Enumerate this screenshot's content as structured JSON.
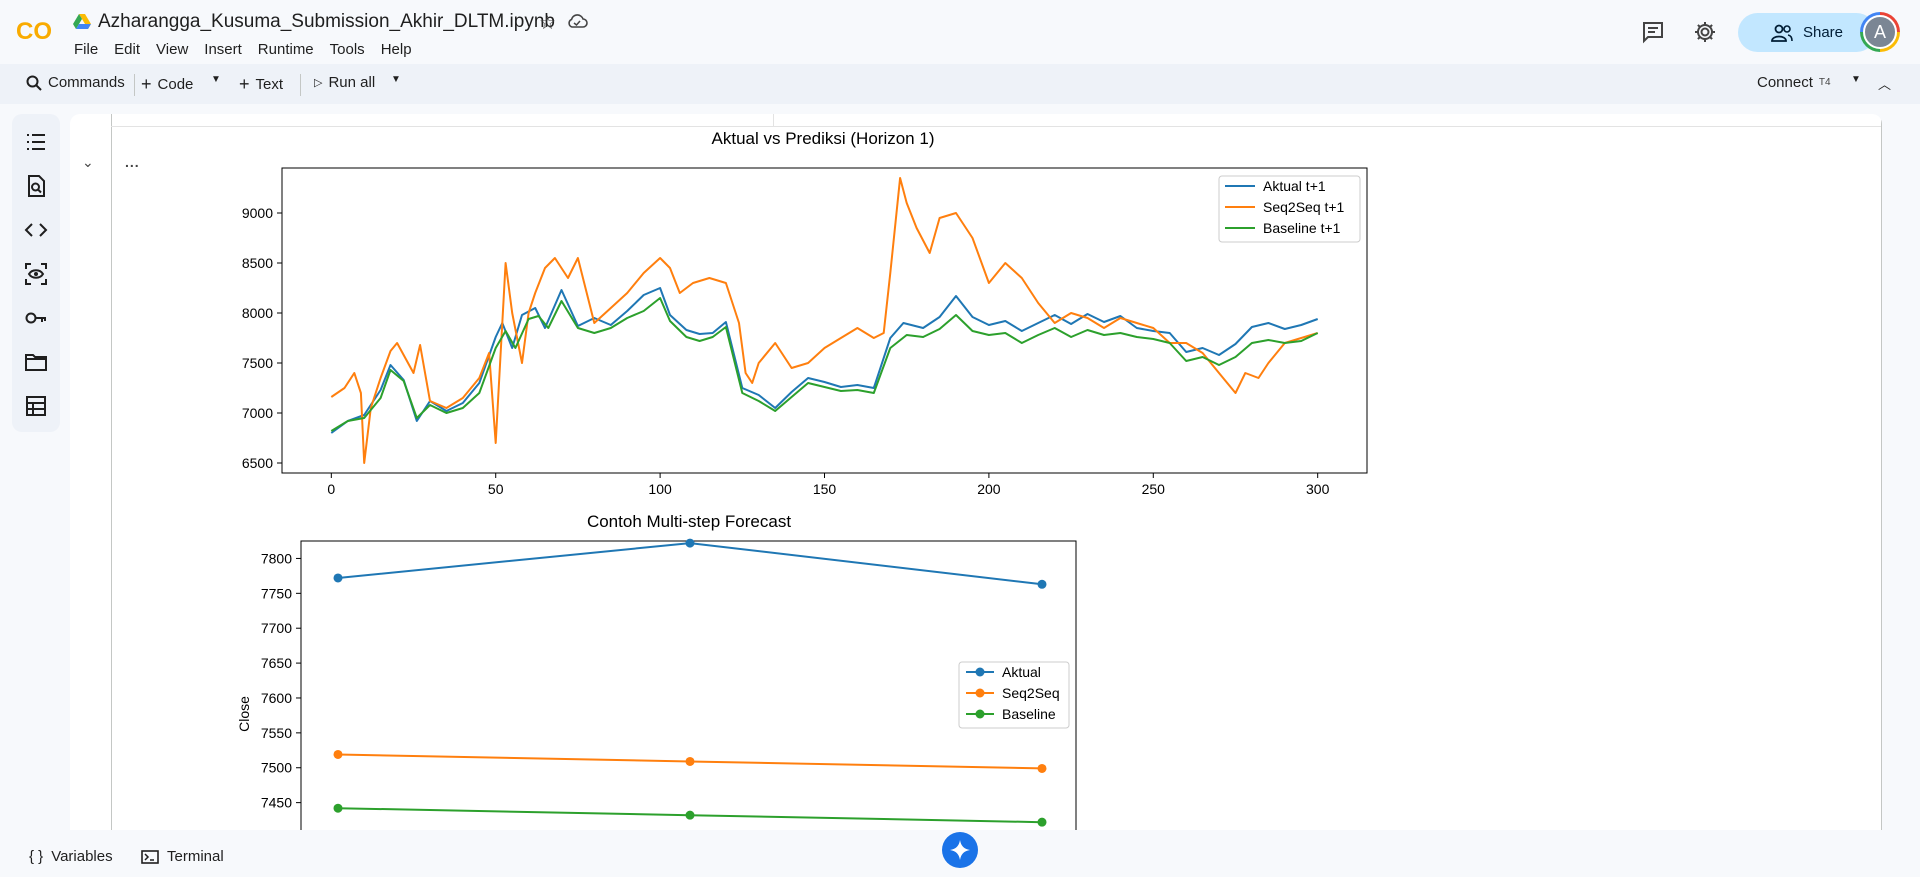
{
  "app": {
    "logo_text": "CO",
    "title": "Azharangga_Kusuma_Submission_Akhir_DLTM.ipynb"
  },
  "menu": [
    "File",
    "Edit",
    "View",
    "Insert",
    "Runtime",
    "Tools",
    "Help"
  ],
  "header": {
    "share_label": "Share",
    "avatar_letter": "A"
  },
  "toolbar": {
    "commands_label": "Commands",
    "code_label": "Code",
    "text_label": "Text",
    "run_all_label": "Run all",
    "connect_label": "Connect",
    "runtime_badge": "T4"
  },
  "output": {
    "menu_label": "...",
    "chevron": "⌄"
  },
  "bottom": {
    "variables_label": "Variables",
    "terminal_label": "Terminal"
  },
  "colors": {
    "blue": "#1f77b4",
    "orange": "#ff7f0e",
    "green": "#2ca02c",
    "share_bg": "#c2e7ff",
    "gemini": "#1a73e8"
  },
  "chart_data": [
    {
      "type": "line",
      "title": "Aktual vs Prediksi (Horizon 1)",
      "xlabel": "",
      "ylabel": "",
      "xlim": [
        -15,
        315
      ],
      "ylim": [
        6400,
        9450
      ],
      "xticks": [
        0,
        50,
        100,
        150,
        200,
        250,
        300
      ],
      "yticks": [
        6500,
        7000,
        7500,
        8000,
        8500,
        9000
      ],
      "legend": "top-right",
      "series": [
        {
          "name": "Aktual t+1",
          "color": "#1f77b4",
          "x": [
            0,
            5,
            10,
            15,
            18,
            22,
            26,
            30,
            35,
            40,
            45,
            50,
            52,
            55,
            58,
            62,
            65,
            70,
            75,
            80,
            85,
            90,
            95,
            100,
            103,
            108,
            112,
            116,
            120,
            125,
            130,
            135,
            140,
            145,
            150,
            155,
            160,
            165,
            170,
            174,
            180,
            185,
            190,
            195,
            200,
            205,
            210,
            215,
            220,
            225,
            230,
            235,
            240,
            245,
            250,
            255,
            260,
            265,
            270,
            275,
            280,
            285,
            290,
            295,
            300
          ],
          "values": [
            6800,
            6920,
            6980,
            7230,
            7480,
            7330,
            6920,
            7120,
            7020,
            7100,
            7300,
            7760,
            7900,
            7650,
            7980,
            8050,
            7850,
            8230,
            7870,
            7950,
            7880,
            8020,
            8180,
            8250,
            7980,
            7830,
            7790,
            7800,
            7910,
            7250,
            7180,
            7050,
            7210,
            7350,
            7310,
            7260,
            7280,
            7250,
            7750,
            7900,
            7850,
            7960,
            8170,
            7960,
            7880,
            7920,
            7820,
            7900,
            7980,
            7890,
            7990,
            7910,
            7970,
            7850,
            7820,
            7800,
            7610,
            7650,
            7580,
            7690,
            7860,
            7900,
            7840,
            7880,
            7940
          ]
        },
        {
          "name": "Seq2Seq t+1",
          "color": "#ff7f0e",
          "x": [
            0,
            4,
            7,
            9,
            10,
            12,
            15,
            18,
            20,
            25,
            27,
            30,
            35,
            40,
            45,
            48,
            50,
            51,
            53,
            55,
            58,
            60,
            62,
            65,
            68,
            72,
            75,
            80,
            85,
            90,
            95,
            100,
            103,
            106,
            110,
            115,
            120,
            124,
            126,
            128,
            130,
            135,
            140,
            145,
            150,
            155,
            160,
            165,
            168,
            170,
            173,
            175,
            178,
            182,
            185,
            190,
            195,
            200,
            205,
            210,
            215,
            220,
            225,
            230,
            235,
            240,
            245,
            250,
            255,
            260,
            265,
            270,
            275,
            278,
            282,
            285,
            290,
            295,
            300
          ],
          "values": [
            7160,
            7250,
            7400,
            7200,
            6500,
            7050,
            7350,
            7620,
            7700,
            7400,
            7680,
            7120,
            7050,
            7150,
            7350,
            7600,
            6700,
            7300,
            8500,
            8000,
            7500,
            8000,
            8200,
            8450,
            8550,
            8350,
            8550,
            7900,
            8050,
            8200,
            8400,
            8550,
            8450,
            8200,
            8300,
            8350,
            8300,
            7900,
            7400,
            7300,
            7500,
            7700,
            7450,
            7500,
            7650,
            7750,
            7850,
            7750,
            7800,
            8400,
            9350,
            9100,
            8850,
            8600,
            8950,
            9000,
            8750,
            8300,
            8500,
            8350,
            8100,
            7900,
            8000,
            7950,
            7850,
            7950,
            7900,
            7850,
            7700,
            7700,
            7600,
            7400,
            7200,
            7400,
            7350,
            7500,
            7700,
            7750,
            7800
          ]
        },
        {
          "name": "Baseline t+1",
          "color": "#2ca02c",
          "x": [
            0,
            5,
            10,
            15,
            18,
            22,
            26,
            30,
            35,
            40,
            45,
            50,
            53,
            56,
            60,
            63,
            66,
            70,
            75,
            80,
            85,
            90,
            95,
            100,
            103,
            108,
            112,
            116,
            120,
            125,
            130,
            135,
            140,
            145,
            150,
            155,
            160,
            165,
            170,
            175,
            180,
            185,
            190,
            195,
            200,
            205,
            210,
            215,
            220,
            225,
            230,
            235,
            240,
            245,
            250,
            255,
            260,
            265,
            270,
            275,
            280,
            285,
            290,
            295,
            300
          ],
          "values": [
            6820,
            6920,
            6950,
            7150,
            7430,
            7320,
            6950,
            7080,
            7000,
            7050,
            7200,
            7650,
            7820,
            7650,
            7940,
            7970,
            7850,
            8120,
            7850,
            7800,
            7850,
            7950,
            8020,
            8150,
            7920,
            7760,
            7720,
            7760,
            7860,
            7200,
            7120,
            7020,
            7160,
            7300,
            7260,
            7220,
            7230,
            7200,
            7650,
            7780,
            7760,
            7840,
            7980,
            7820,
            7780,
            7800,
            7700,
            7780,
            7850,
            7760,
            7830,
            7780,
            7800,
            7760,
            7740,
            7700,
            7520,
            7560,
            7480,
            7560,
            7700,
            7730,
            7700,
            7720,
            7800
          ]
        }
      ]
    },
    {
      "type": "line",
      "title": "Contoh Multi-step Forecast",
      "xlabel": "",
      "ylabel": "Close",
      "ylim": [
        7395,
        7825
      ],
      "yticks": [
        7450,
        7500,
        7550,
        7600,
        7650,
        7700,
        7750,
        7800
      ],
      "legend": "center-right",
      "x": [
        1,
        2,
        3
      ],
      "series": [
        {
          "name": "Aktual",
          "color": "#1f77b4",
          "values": [
            7772,
            7822,
            7763
          ]
        },
        {
          "name": "Seq2Seq",
          "color": "#ff7f0e",
          "values": [
            7519,
            7509,
            7499
          ]
        },
        {
          "name": "Baseline",
          "color": "#2ca02c",
          "values": [
            7442,
            7432,
            7422
          ]
        }
      ]
    }
  ]
}
